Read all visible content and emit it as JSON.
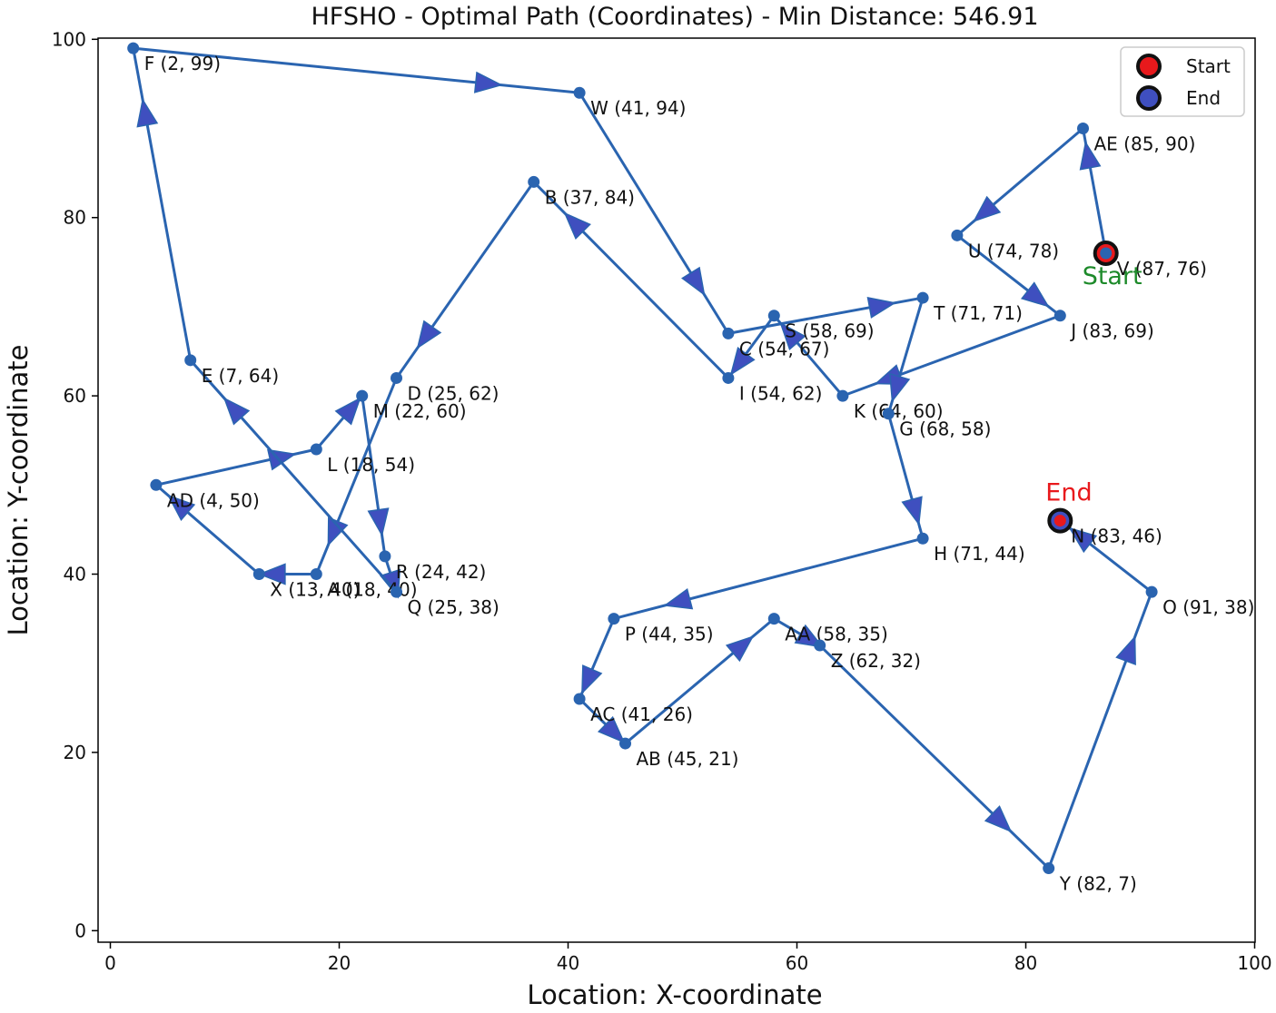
{
  "chart_data": {
    "type": "line",
    "title": "HFSHO - Optimal Path (Coordinates) - Min Distance: 546.91",
    "xlabel": "Location: X-coordinate",
    "ylabel": "Location: Y-coordinate",
    "xlim": [
      -1,
      100
    ],
    "ylim": [
      -1,
      100
    ],
    "xticks": [
      0,
      20,
      40,
      60,
      80,
      100
    ],
    "yticks": [
      0,
      20,
      40,
      60,
      80,
      100
    ],
    "grid": false,
    "legend": {
      "placement": "top-right",
      "entries": [
        {
          "label": "Start",
          "color": "#e8191c"
        },
        {
          "label": "End",
          "color": "#3f4fbf"
        }
      ]
    },
    "colors": {
      "path": "#2a64b0",
      "arrow": "#3f4fbf",
      "start_marker": "#e8191c",
      "end_marker": "#3f4fbf",
      "start_text": "#1d8a2a",
      "end_text": "#e8191c"
    },
    "points": [
      {
        "id": "V",
        "x": 87,
        "y": 76,
        "label": "V (87, 76)"
      },
      {
        "id": "AE",
        "x": 85,
        "y": 90,
        "label": "AE (85, 90)"
      },
      {
        "id": "U",
        "x": 74,
        "y": 78,
        "label": "U (74, 78)"
      },
      {
        "id": "J",
        "x": 83,
        "y": 69,
        "label": "J (83, 69)"
      },
      {
        "id": "K",
        "x": 64,
        "y": 60,
        "label": "K (64, 60)"
      },
      {
        "id": "S",
        "x": 58,
        "y": 69,
        "label": "S (58, 69)"
      },
      {
        "id": "I",
        "x": 54,
        "y": 62,
        "label": "I (54, 62)"
      },
      {
        "id": "B",
        "x": 37,
        "y": 84,
        "label": "B (37, 84)"
      },
      {
        "id": "D",
        "x": 25,
        "y": 62,
        "label": "D (25, 62)"
      },
      {
        "id": "A",
        "x": 18,
        "y": 40,
        "label": "A (18, 40)"
      },
      {
        "id": "X",
        "x": 13,
        "y": 40,
        "label": "X (13, 40)"
      },
      {
        "id": "AD",
        "x": 4,
        "y": 50,
        "label": "AD (4, 50)"
      },
      {
        "id": "L",
        "x": 18,
        "y": 54,
        "label": "L (18, 54)"
      },
      {
        "id": "M",
        "x": 22,
        "y": 60,
        "label": "M (22, 60)"
      },
      {
        "id": "R",
        "x": 24,
        "y": 42,
        "label": "R (24, 42)"
      },
      {
        "id": "Q",
        "x": 25,
        "y": 38,
        "label": "Q (25, 38)"
      },
      {
        "id": "E",
        "x": 7,
        "y": 64,
        "label": "E (7, 64)"
      },
      {
        "id": "F",
        "x": 2,
        "y": 99,
        "label": "F (2, 99)"
      },
      {
        "id": "W",
        "x": 41,
        "y": 94,
        "label": "W (41, 94)"
      },
      {
        "id": "C",
        "x": 54,
        "y": 67,
        "label": "C (54, 67)"
      },
      {
        "id": "T",
        "x": 71,
        "y": 71,
        "label": "T (71, 71)"
      },
      {
        "id": "G",
        "x": 68,
        "y": 58,
        "label": "G (68, 58)"
      },
      {
        "id": "H",
        "x": 71,
        "y": 44,
        "label": "H (71, 44)"
      },
      {
        "id": "P",
        "x": 44,
        "y": 35,
        "label": "P (44, 35)"
      },
      {
        "id": "AC",
        "x": 41,
        "y": 26,
        "label": "AC (41, 26)"
      },
      {
        "id": "AB",
        "x": 45,
        "y": 21,
        "label": "AB (45, 21)"
      },
      {
        "id": "AA",
        "x": 58,
        "y": 35,
        "label": "AA (58, 35)"
      },
      {
        "id": "Z",
        "x": 62,
        "y": 32,
        "label": "Z (62, 32)"
      },
      {
        "id": "Y",
        "x": 82,
        "y": 7,
        "label": "Y (82, 7)"
      },
      {
        "id": "O",
        "x": 91,
        "y": 38,
        "label": "O (91, 38)"
      },
      {
        "id": "N",
        "x": 83,
        "y": 46,
        "label": "N (83, 46)"
      }
    ],
    "start_label": "Start",
    "end_label": "End"
  }
}
